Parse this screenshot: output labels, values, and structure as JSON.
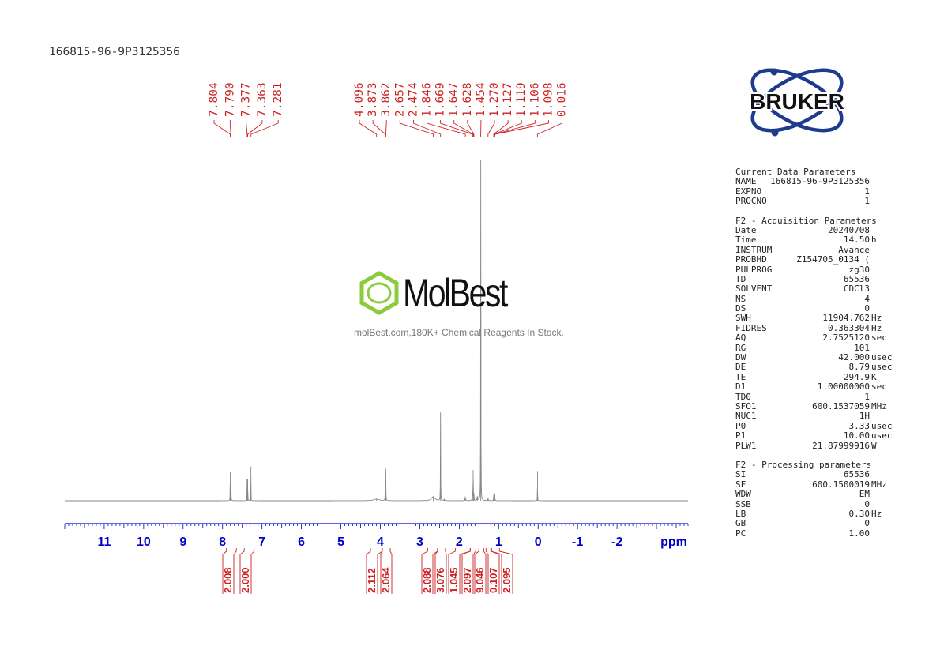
{
  "sample_id": "166815-96-9P3125356",
  "logo": {
    "brand": "BRUKER"
  },
  "watermark": {
    "name": "MolBest",
    "tagline": "molBest.com,180K+ Chemical Reagents In Stock."
  },
  "colors": {
    "axis": "#0000cc",
    "peak_label": "#cc2222",
    "integral": "#cc2222",
    "spectrum": "#888888",
    "logo": "#1f3b8e"
  },
  "params": {
    "sections": [
      {
        "title": "Current Data Parameters",
        "rows": [
          {
            "k": "NAME",
            "v": "166815-96-9P3125356",
            "u": ""
          },
          {
            "k": "EXPNO",
            "v": "1",
            "u": ""
          },
          {
            "k": "PROCNO",
            "v": "1",
            "u": ""
          }
        ]
      },
      {
        "title": "F2 - Acquisition Parameters",
        "rows": [
          {
            "k": "Date_",
            "v": "20240708",
            "u": ""
          },
          {
            "k": "Time",
            "v": "14.50",
            "u": "h"
          },
          {
            "k": "INSTRUM",
            "v": "Avance",
            "u": ""
          },
          {
            "k": "PROBHD",
            "v": "Z154705_0134 (",
            "u": ""
          },
          {
            "k": "PULPROG",
            "v": "zg30",
            "u": ""
          },
          {
            "k": "TD",
            "v": "65536",
            "u": ""
          },
          {
            "k": "SOLVENT",
            "v": "CDCl3",
            "u": ""
          },
          {
            "k": "NS",
            "v": "4",
            "u": ""
          },
          {
            "k": "DS",
            "v": "0",
            "u": ""
          },
          {
            "k": "SWH",
            "v": "11904.762",
            "u": "Hz"
          },
          {
            "k": "FIDRES",
            "v": "0.363304",
            "u": "Hz"
          },
          {
            "k": "AQ",
            "v": "2.7525120",
            "u": "sec"
          },
          {
            "k": "RG",
            "v": "101",
            "u": ""
          },
          {
            "k": "DW",
            "v": "42.000",
            "u": "usec"
          },
          {
            "k": "DE",
            "v": "8.79",
            "u": "usec"
          },
          {
            "k": "TE",
            "v": "294.9",
            "u": "K"
          },
          {
            "k": "D1",
            "v": "1.00000000",
            "u": "sec"
          },
          {
            "k": "TD0",
            "v": "1",
            "u": ""
          },
          {
            "k": "SFO1",
            "v": "600.1537059",
            "u": "MHz"
          },
          {
            "k": "NUC1",
            "v": "1H",
            "u": ""
          },
          {
            "k": "P0",
            "v": "3.33",
            "u": "usec"
          },
          {
            "k": "P1",
            "v": "10.00",
            "u": "usec"
          },
          {
            "k": "PLW1",
            "v": "21.87999916",
            "u": "W"
          }
        ]
      },
      {
        "title": "F2 - Processing parameters",
        "rows": [
          {
            "k": "SI",
            "v": "65536",
            "u": ""
          },
          {
            "k": "SF",
            "v": "600.1500019",
            "u": "MHz"
          },
          {
            "k": "WDW",
            "v": "EM",
            "u": ""
          },
          {
            "k": "SSB",
            "v": "0",
            "u": ""
          },
          {
            "k": "LB",
            "v": "0.30",
            "u": "Hz"
          },
          {
            "k": "GB",
            "v": "0",
            "u": ""
          },
          {
            "k": "PC",
            "v": "1.00",
            "u": ""
          }
        ]
      }
    ]
  },
  "chart_data": {
    "type": "line",
    "xlabel": "ppm",
    "xlim": [
      12,
      -3.8
    ],
    "x_reversed": true,
    "x_ticks": [
      11,
      10,
      9,
      8,
      7,
      6,
      5,
      4,
      3,
      2,
      1,
      0,
      -1,
      -2
    ],
    "x_tick_labels": [
      "11",
      "10",
      "9",
      "8",
      "7",
      "6",
      "5",
      "4",
      "3",
      "2",
      "1",
      "0",
      "-1",
      "-2"
    ],
    "x_minor_step": 0.1,
    "ylim": [
      0,
      1
    ],
    "grid": false,
    "peak_labels": [
      "7.804",
      "7.790",
      "7.377",
      "7.363",
      "7.281",
      "4.096",
      "3.873",
      "3.862",
      "2.657",
      "2.474",
      "1.846",
      "1.669",
      "1.647",
      "1.628",
      "1.454",
      "1.270",
      "1.127",
      "1.119",
      "1.106",
      "1.098",
      "0.016"
    ],
    "peak_label_ppm": [
      7.804,
      7.79,
      7.377,
      7.363,
      7.281,
      4.096,
      3.873,
      3.862,
      2.657,
      2.474,
      1.846,
      1.669,
      1.647,
      1.628,
      1.454,
      1.27,
      1.127,
      1.119,
      1.106,
      1.098,
      0.016
    ],
    "peaks": [
      {
        "ppm": 7.804,
        "height": 0.083,
        "width": 0.003
      },
      {
        "ppm": 7.79,
        "height": 0.083,
        "width": 0.003
      },
      {
        "ppm": 7.377,
        "height": 0.063,
        "width": 0.003
      },
      {
        "ppm": 7.363,
        "height": 0.063,
        "width": 0.003
      },
      {
        "ppm": 7.281,
        "height": 0.1,
        "width": 0.002
      },
      {
        "ppm": 4.096,
        "height": 0.005,
        "width": 0.08
      },
      {
        "ppm": 3.873,
        "height": 0.094,
        "width": 0.003
      },
      {
        "ppm": 3.862,
        "height": 0.094,
        "width": 0.003
      },
      {
        "ppm": 2.657,
        "height": 0.012,
        "width": 0.05
      },
      {
        "ppm": 2.474,
        "height": 0.258,
        "width": 0.003
      },
      {
        "ppm": 2.38,
        "height": 0.004,
        "width": 0.01
      },
      {
        "ppm": 1.846,
        "height": 0.011,
        "width": 0.008
      },
      {
        "ppm": 1.669,
        "height": 0.025,
        "width": 0.004
      },
      {
        "ppm": 1.647,
        "height": 0.09,
        "width": 0.004
      },
      {
        "ppm": 1.628,
        "height": 0.022,
        "width": 0.004
      },
      {
        "ppm": 1.54,
        "height": 0.012,
        "width": 0.01
      },
      {
        "ppm": 1.454,
        "height": 1.0,
        "width": 0.003
      },
      {
        "ppm": 1.27,
        "height": 0.008,
        "width": 0.006
      },
      {
        "ppm": 1.127,
        "height": 0.016,
        "width": 0.003
      },
      {
        "ppm": 1.119,
        "height": 0.022,
        "width": 0.003
      },
      {
        "ppm": 1.106,
        "height": 0.022,
        "width": 0.003
      },
      {
        "ppm": 1.098,
        "height": 0.016,
        "width": 0.003
      },
      {
        "ppm": 0.016,
        "height": 0.087,
        "width": 0.002
      }
    ],
    "integrals": [
      {
        "from": 7.9,
        "to": 7.65,
        "value": "2.008"
      },
      {
        "from": 7.45,
        "to": 7.2,
        "value": "2.000"
      },
      {
        "from": 4.25,
        "to": 3.95,
        "value": "2.112"
      },
      {
        "from": 3.95,
        "to": 3.75,
        "value": "2.064"
      },
      {
        "from": 2.8,
        "to": 2.55,
        "value": "2.088"
      },
      {
        "from": 2.55,
        "to": 2.35,
        "value": "3.076"
      },
      {
        "from": 2.1,
        "to": 1.72,
        "value": "1.045"
      },
      {
        "from": 1.72,
        "to": 1.58,
        "value": "2.097"
      },
      {
        "from": 1.5,
        "to": 1.38,
        "value": "9.046"
      },
      {
        "from": 1.32,
        "to": 1.2,
        "value": "0.107"
      },
      {
        "from": 1.18,
        "to": 0.98,
        "value": "2.095"
      }
    ]
  }
}
